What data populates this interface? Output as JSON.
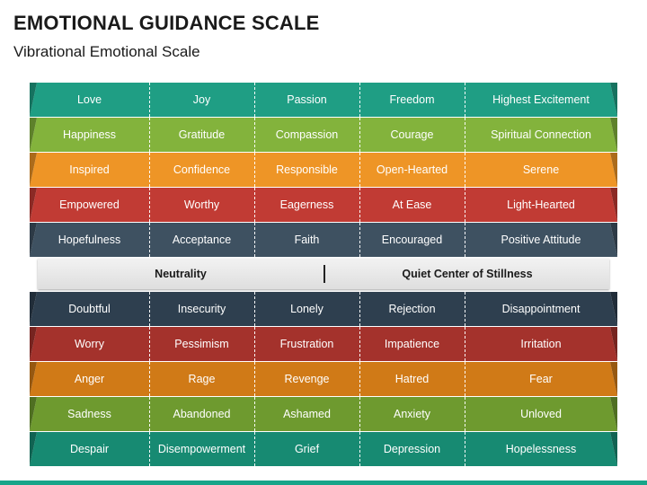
{
  "title": "EMOTIONAL GUIDANCE SCALE",
  "subtitle": "Vibrational Emotional Scale",
  "colors": {
    "teal": "#1f9e84",
    "green": "#83b33c",
    "orange": "#ee9526",
    "red": "#c13b34",
    "slate": "#3e5161",
    "neutral": "#e6e6e6",
    "accent_bar": "#17a589"
  },
  "rows": [
    {
      "color": "#1f9e84",
      "cells": [
        "Love",
        "Joy",
        "Passion",
        "Freedom",
        "Highest Excitement"
      ]
    },
    {
      "color": "#83b33c",
      "cells": [
        "Happiness",
        "Gratitude",
        "Compassion",
        "Courage",
        "Spiritual Connection"
      ]
    },
    {
      "color": "#ee9526",
      "cells": [
        "Inspired",
        "Confidence",
        "Responsible",
        "Open-Hearted",
        "Serene"
      ]
    },
    {
      "color": "#c13b34",
      "cells": [
        "Empowered",
        "Worthy",
        "Eagerness",
        "At Ease",
        "Light-Hearted"
      ]
    },
    {
      "color": "#3e5161",
      "cells": [
        "Hopefulness",
        "Acceptance",
        "Faith",
        "Encouraged",
        "Positive Attitude"
      ]
    }
  ],
  "middle": {
    "left": "Neutrality",
    "right": "Quiet Center of Stillness"
  },
  "rows_bottom": [
    {
      "color": "#2e3f4f",
      "cells": [
        "Doubtful",
        "Insecurity",
        "Lonely",
        "Rejection",
        "Disappointment"
      ]
    },
    {
      "color": "#a4322c",
      "cells": [
        "Worry",
        "Pessimism",
        "Frustration",
        "Impatience",
        "Irritation"
      ]
    },
    {
      "color": "#d07a17",
      "cells": [
        "Anger",
        "Rage",
        "Revenge",
        "Hatred",
        "Fear"
      ]
    },
    {
      "color": "#6e9a2f",
      "cells": [
        "Sadness",
        "Abandoned",
        "Ashamed",
        "Anxiety",
        "Unloved"
      ]
    },
    {
      "color": "#178a72",
      "cells": [
        "Despair",
        "Disempowerment",
        "Grief",
        "Depression",
        "Hopelessness"
      ]
    }
  ]
}
